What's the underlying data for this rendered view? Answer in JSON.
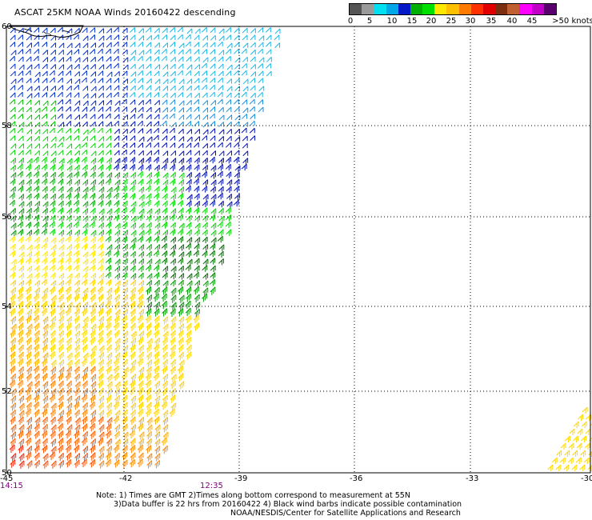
{
  "title": "ASCAT 25KM NOAA Winds 20160422 descending",
  "legend": {
    "labels": [
      "0",
      "5",
      "10",
      "15",
      "20",
      "25",
      "30",
      "35",
      "40",
      "45",
      ">50 knots"
    ],
    "colors": [
      "#555555",
      "#9a9a9a",
      "#00e0f0",
      "#00a8e8",
      "#0018c8",
      "#00b000",
      "#00e000",
      "#ffe800",
      "#ffc000",
      "#ff7a00",
      "#ff3000",
      "#e00000",
      "#7a3010",
      "#c06030",
      "#ff00ff",
      "#c000c8",
      "#5a006e"
    ]
  },
  "axes": {
    "lon_ticks": [
      "-45",
      "-42",
      "-39",
      "-36",
      "-33",
      "-30"
    ],
    "lat_ticks": [
      "60",
      "58",
      "56",
      "54",
      "52",
      "50"
    ]
  },
  "pass_times": [
    "14:15",
    "12:35"
  ],
  "notes": [
    "Note: 1) Times are GMT 2)Times along bottom correspond to measurement at 55N",
    "3)Data buffer is 22 hrs from 20160422 4) Black wind barbs indicate possible contamination",
    "NOAA/NESDIS/Center for Satellite Applications and Research"
  ]
}
